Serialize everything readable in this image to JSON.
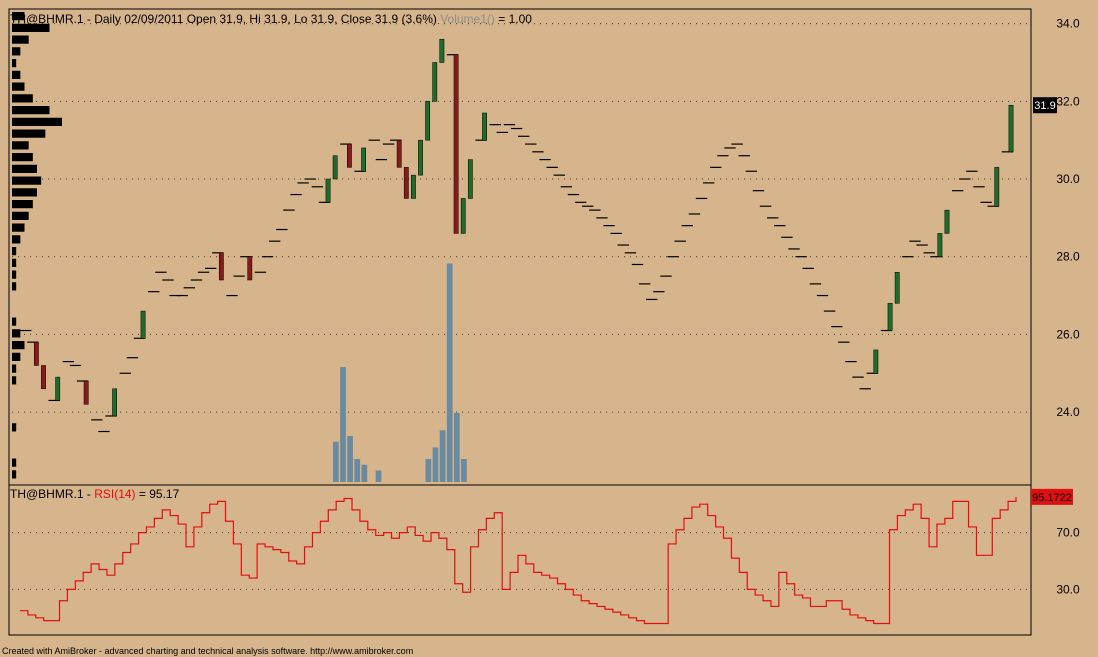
{
  "header": {
    "symbol": "TH@BHMR.1",
    "price_info": " - Daily 02/09/2011 Open 31.9, Hi 31.9, Lo 31.9, Close 31.9 (3.6%)",
    "volume_label": "Volume1()",
    "volume_value": " = 1.00"
  },
  "rsi_header": {
    "symbol": "TH@BHMR.1",
    "separator": " - ",
    "indicator": "RSI(14)",
    "value_text": " = 95.17"
  },
  "footer": {
    "text": "Created with AmiBroker - advanced charting and technical analysis software. http://www.amibroker.com"
  },
  "colors": {
    "background": "#d6b48c",
    "grid": "#3a3a3a",
    "up_bar": "#1f6b2a",
    "down_bar": "#8a1a1a",
    "volume": "#6a8aa0",
    "rsi": "#e01010",
    "badge": "#000000"
  },
  "chart_data": [
    {
      "type": "line",
      "title": "TH@BHMR.1 - Daily",
      "yticks": [
        "34.0",
        "32.0",
        "30.0",
        "28.0",
        "26.0",
        "24.0"
      ],
      "ylim": [
        22.2,
        34.3
      ],
      "last_value_label": "31.9",
      "last_value": 31.9,
      "grid": true,
      "close": [
        26.1,
        25.8,
        25.2,
        24.6,
        24.3,
        24.9,
        25.3,
        25.2,
        24.8,
        24.2,
        23.8,
        23.5,
        23.9,
        24.6,
        25.0,
        25.4,
        25.9,
        26.6,
        27.1,
        27.6,
        27.4,
        27.0,
        27.0,
        27.2,
        27.4,
        27.6,
        27.7,
        28.1,
        27.4,
        27.0,
        27.5,
        28.0,
        27.4,
        27.6,
        28.0,
        28.4,
        28.7,
        29.2,
        29.6,
        29.9,
        30.0,
        29.8,
        29.4,
        30.0,
        30.6,
        30.9,
        30.3,
        30.2,
        30.8,
        31.0,
        30.5,
        30.9,
        31.0,
        30.3,
        29.5,
        30.1,
        31.0,
        32.0,
        33.0,
        33.6,
        33.2,
        28.6,
        29.5,
        30.5,
        31.0,
        31.7,
        31.4,
        31.2,
        31.4,
        31.3,
        31.1,
        30.9,
        30.7,
        30.5,
        30.3,
        30.1,
        29.8,
        29.6,
        29.4,
        29.3,
        29.2,
        29.0,
        28.8,
        28.6,
        28.3,
        28.1,
        27.8,
        27.3,
        26.9,
        27.1,
        27.5,
        28.0,
        28.4,
        28.8,
        29.1,
        29.5,
        29.9,
        30.3,
        30.6,
        30.8,
        30.9,
        30.6,
        30.2,
        29.7,
        29.3,
        29.0,
        28.8,
        28.5,
        28.2,
        28.0,
        27.7,
        27.3,
        27.0,
        26.6,
        26.2,
        25.8,
        25.3,
        24.9,
        24.6,
        25.0,
        25.6,
        26.1,
        26.8,
        27.6,
        28.0,
        28.4,
        28.3,
        28.1,
        28.0,
        28.6,
        29.2,
        29.7,
        30.0,
        30.2,
        29.8,
        29.4,
        29.3,
        30.3,
        30.7,
        31.9
      ],
      "volume_profile": [
        3,
        9,
        4,
        2,
        1,
        2,
        3,
        5,
        9,
        12,
        8,
        4,
        5,
        6,
        7,
        6,
        5,
        4,
        3,
        2,
        1,
        1,
        1,
        1,
        0,
        0,
        1,
        2,
        3,
        2,
        1,
        1,
        0,
        0,
        0,
        1,
        0,
        0,
        1,
        1
      ]
    },
    {
      "type": "line",
      "title": "RSI(14)",
      "yticks": [
        "70.0",
        "30.0"
      ],
      "ylim": [
        0,
        100
      ],
      "last_value_label": "95.1722",
      "last_value": 95.17,
      "values": [
        15,
        12,
        10,
        8,
        8,
        22,
        30,
        36,
        42,
        48,
        44,
        40,
        48,
        56,
        62,
        70,
        74,
        80,
        86,
        82,
        76,
        60,
        74,
        84,
        90,
        92,
        78,
        62,
        40,
        38,
        62,
        60,
        58,
        56,
        50,
        48,
        60,
        70,
        78,
        86,
        92,
        94,
        86,
        78,
        72,
        68,
        70,
        66,
        70,
        74,
        68,
        64,
        70,
        66,
        58,
        34,
        28,
        60,
        72,
        80,
        84,
        30,
        42,
        54,
        48,
        42,
        40,
        38,
        34,
        30,
        26,
        22,
        20,
        18,
        16,
        14,
        12,
        10,
        8,
        6,
        6,
        6,
        62,
        72,
        80,
        88,
        90,
        82,
        74,
        66,
        52,
        42,
        30,
        26,
        22,
        18,
        42,
        34,
        26,
        24,
        18,
        18,
        22,
        22,
        16,
        12,
        10,
        8,
        6,
        6,
        72,
        82,
        86,
        90,
        80,
        60,
        76,
        80,
        92,
        92,
        74,
        54,
        54,
        80,
        86,
        92,
        95
      ]
    }
  ]
}
